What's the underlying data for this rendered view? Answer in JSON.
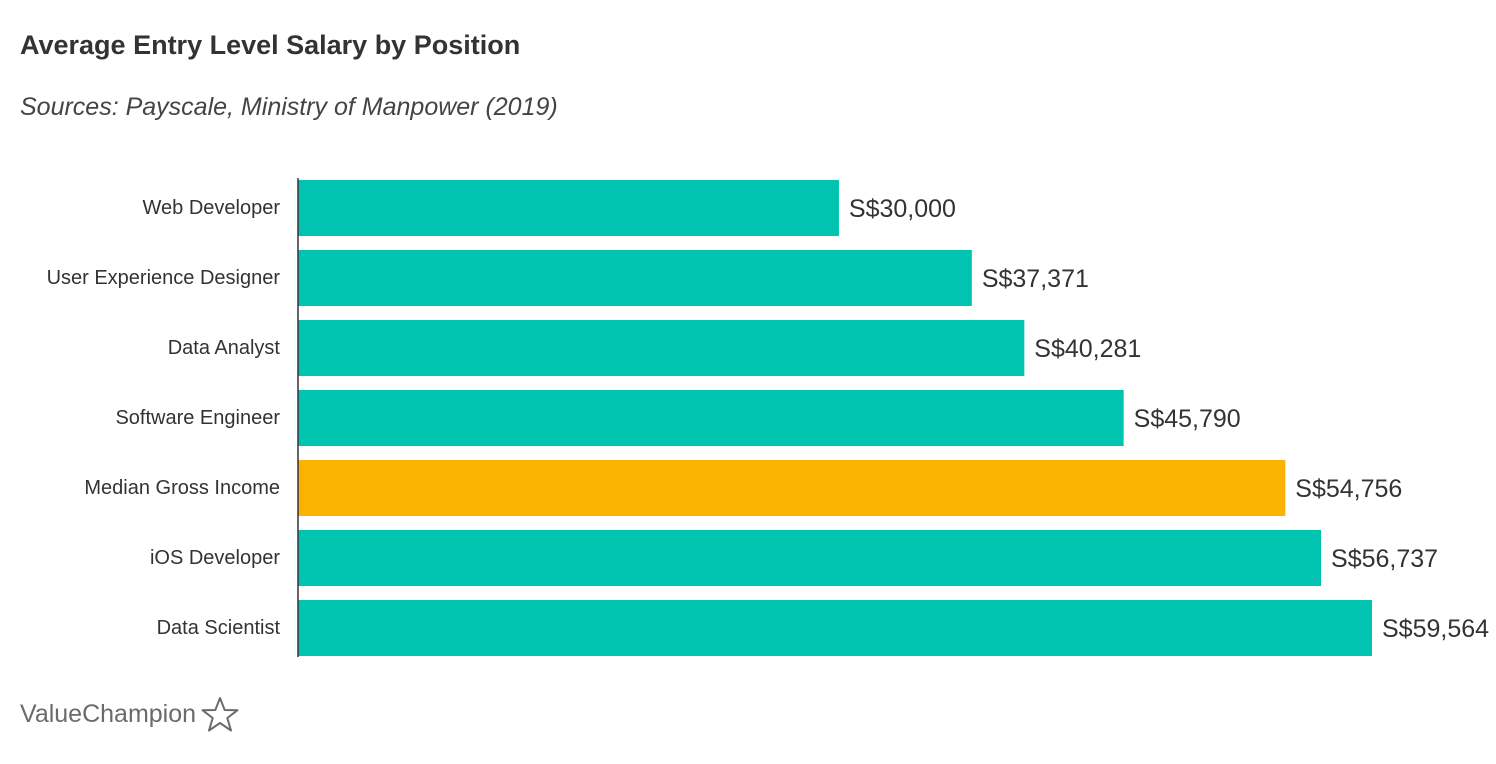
{
  "title": "Average Entry Level Salary by Position",
  "subtitle": "Sources: Payscale, Ministry of Manpower (2019)",
  "brand": {
    "name": "ValueChampion",
    "icon": "star-outline-icon",
    "color": "#6b6b6b"
  },
  "chart_data": {
    "type": "bar",
    "orientation": "horizontal",
    "categories": [
      "Web Developer",
      "User Experience Designer",
      "Data Analyst",
      "Software Engineer",
      "Median Gross Income",
      "iOS Developer",
      "Data Scientist"
    ],
    "values": [
      30000,
      37371,
      40281,
      45790,
      54756,
      56737,
      59564
    ],
    "value_labels": [
      "S$30,000",
      "S$37,371",
      "S$40,281",
      "S$45,790",
      "S$54,756",
      "S$56,737",
      "S$59,564"
    ],
    "colors": [
      "#00c4b0",
      "#00c4b0",
      "#00c4b0",
      "#00c4b0",
      "#f9b300",
      "#00c4b0",
      "#00c4b0"
    ],
    "xlim": [
      0,
      66000
    ],
    "grid": false,
    "legend": false,
    "axis_color": "#333333"
  }
}
